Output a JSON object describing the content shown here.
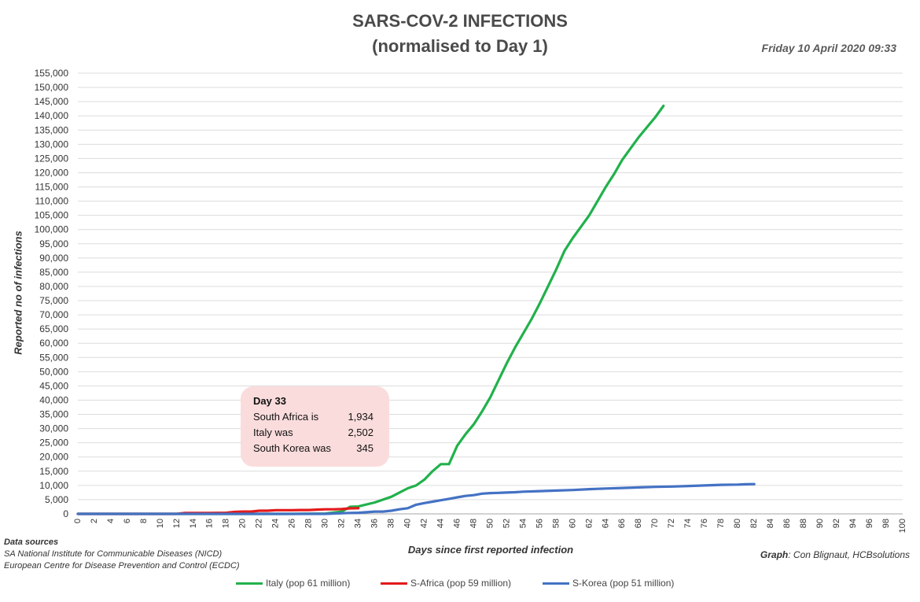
{
  "chart_data": {
    "type": "line",
    "title": "SARS-COV-2 INFECTIONS",
    "subtitle": "(normalised to Day 1)",
    "timestamp": "Friday 10 April 2020 09:33",
    "xlabel": "Days since first reported infection",
    "ylabel": "Reported no of infections",
    "xlim": [
      0,
      100
    ],
    "ylim": [
      0,
      155000
    ],
    "x_ticks": [
      "0",
      "2",
      "4",
      "6",
      "8",
      "10",
      "12",
      "14",
      "16",
      "18",
      "20",
      "22",
      "24",
      "26",
      "28",
      "30",
      "32",
      "34",
      "36",
      "38",
      "40",
      "42",
      "44",
      "46",
      "48",
      "50",
      "52",
      "54",
      "56",
      "58",
      "60",
      "62",
      "64",
      "66",
      "68",
      "70",
      "72",
      "74",
      "76",
      "78",
      "80",
      "82",
      "84",
      "86",
      "88",
      "90",
      "92",
      "94",
      "96",
      "98",
      "100"
    ],
    "y_ticks": [
      "0",
      "5,000",
      "10,000",
      "15,000",
      "20,000",
      "25,000",
      "30,000",
      "35,000",
      "40,000",
      "45,000",
      "50,000",
      "55,000",
      "60,000",
      "65,000",
      "70,000",
      "75,000",
      "80,000",
      "85,000",
      "90,000",
      "95,000",
      "100,000",
      "105,000",
      "110,000",
      "115,000",
      "120,000",
      "125,000",
      "130,000",
      "135,000",
      "140,000",
      "145,000",
      "150,000",
      "155,000"
    ],
    "grid": true,
    "legend_position": "bottom",
    "series": [
      {
        "name": "Italy (pop 61 million)",
        "color": "#22b14c",
        "points": [
          [
            0,
            0
          ],
          [
            12,
            0
          ],
          [
            20,
            0
          ],
          [
            26,
            0
          ],
          [
            30,
            100
          ],
          [
            32,
            800
          ],
          [
            33,
            2502
          ],
          [
            34,
            2600
          ],
          [
            36,
            4000
          ],
          [
            38,
            6000
          ],
          [
            40,
            9000
          ],
          [
            41,
            10000
          ],
          [
            42,
            12000
          ],
          [
            43,
            15000
          ],
          [
            44,
            17500
          ],
          [
            45,
            17500
          ],
          [
            46,
            24000
          ],
          [
            47,
            28000
          ],
          [
            48,
            31500
          ],
          [
            49,
            36000
          ],
          [
            50,
            41000
          ],
          [
            51,
            47000
          ],
          [
            52,
            53000
          ],
          [
            53,
            58500
          ],
          [
            54,
            63500
          ],
          [
            55,
            68500
          ],
          [
            56,
            74000
          ],
          [
            57,
            80000
          ],
          [
            58,
            86000
          ],
          [
            59,
            92500
          ],
          [
            60,
            97000
          ],
          [
            61,
            101000
          ],
          [
            62,
            105000
          ],
          [
            63,
            110000
          ],
          [
            64,
            115000
          ],
          [
            65,
            119500
          ],
          [
            66,
            124500
          ],
          [
            67,
            128500
          ],
          [
            68,
            132500
          ],
          [
            69,
            136000
          ],
          [
            70,
            139500
          ],
          [
            71,
            143500
          ]
        ]
      },
      {
        "name": "S-Africa (pop 59 million)",
        "color": "#e31a1c",
        "points": [
          [
            0,
            0
          ],
          [
            12,
            0
          ],
          [
            13,
            300
          ],
          [
            16,
            300
          ],
          [
            18,
            400
          ],
          [
            19,
            700
          ],
          [
            20,
            800
          ],
          [
            21,
            800
          ],
          [
            22,
            1100
          ],
          [
            23,
            1100
          ],
          [
            24,
            1300
          ],
          [
            26,
            1300
          ],
          [
            27,
            1350
          ],
          [
            28,
            1350
          ],
          [
            29,
            1500
          ],
          [
            30,
            1600
          ],
          [
            31,
            1600
          ],
          [
            32,
            1700
          ],
          [
            33,
            1934
          ],
          [
            34,
            2000
          ]
        ]
      },
      {
        "name": "S-Korea (pop 51 million)",
        "color": "#4472c4",
        "points": [
          [
            0,
            0
          ],
          [
            30,
            0
          ],
          [
            33,
            345
          ],
          [
            34,
            400
          ],
          [
            36,
            800
          ],
          [
            37,
            800
          ],
          [
            38,
            1100
          ],
          [
            39,
            1600
          ],
          [
            40,
            2000
          ],
          [
            41,
            3200
          ],
          [
            42,
            3800
          ],
          [
            43,
            4300
          ],
          [
            44,
            4800
          ],
          [
            45,
            5300
          ],
          [
            46,
            5800
          ],
          [
            47,
            6300
          ],
          [
            48,
            6600
          ],
          [
            49,
            7100
          ],
          [
            50,
            7300
          ],
          [
            51,
            7400
          ],
          [
            52,
            7500
          ],
          [
            53,
            7600
          ],
          [
            54,
            7800
          ],
          [
            56,
            8000
          ],
          [
            58,
            8200
          ],
          [
            60,
            8400
          ],
          [
            62,
            8700
          ],
          [
            64,
            8900
          ],
          [
            66,
            9100
          ],
          [
            68,
            9300
          ],
          [
            70,
            9500
          ],
          [
            72,
            9600
          ],
          [
            74,
            9800
          ],
          [
            76,
            10000
          ],
          [
            78,
            10200
          ],
          [
            80,
            10300
          ],
          [
            81,
            10400
          ],
          [
            82,
            10450
          ]
        ]
      }
    ],
    "annotation": {
      "heading": "Day 33",
      "rows": [
        {
          "label": "South Africa is",
          "value": "1,934"
        },
        {
          "label": "Italy was",
          "value": "2,502"
        },
        {
          "label": "South Korea was",
          "value": "345"
        }
      ]
    },
    "sources": {
      "heading": "Data sources",
      "lines": [
        "SA National Institute for Communicable Diseases (NICD)",
        "European Centre for Disease Prevention and Control (ECDC)"
      ]
    },
    "credit": {
      "label": "Graph",
      "text": ": Con Blignaut, HCBsolutions"
    }
  }
}
